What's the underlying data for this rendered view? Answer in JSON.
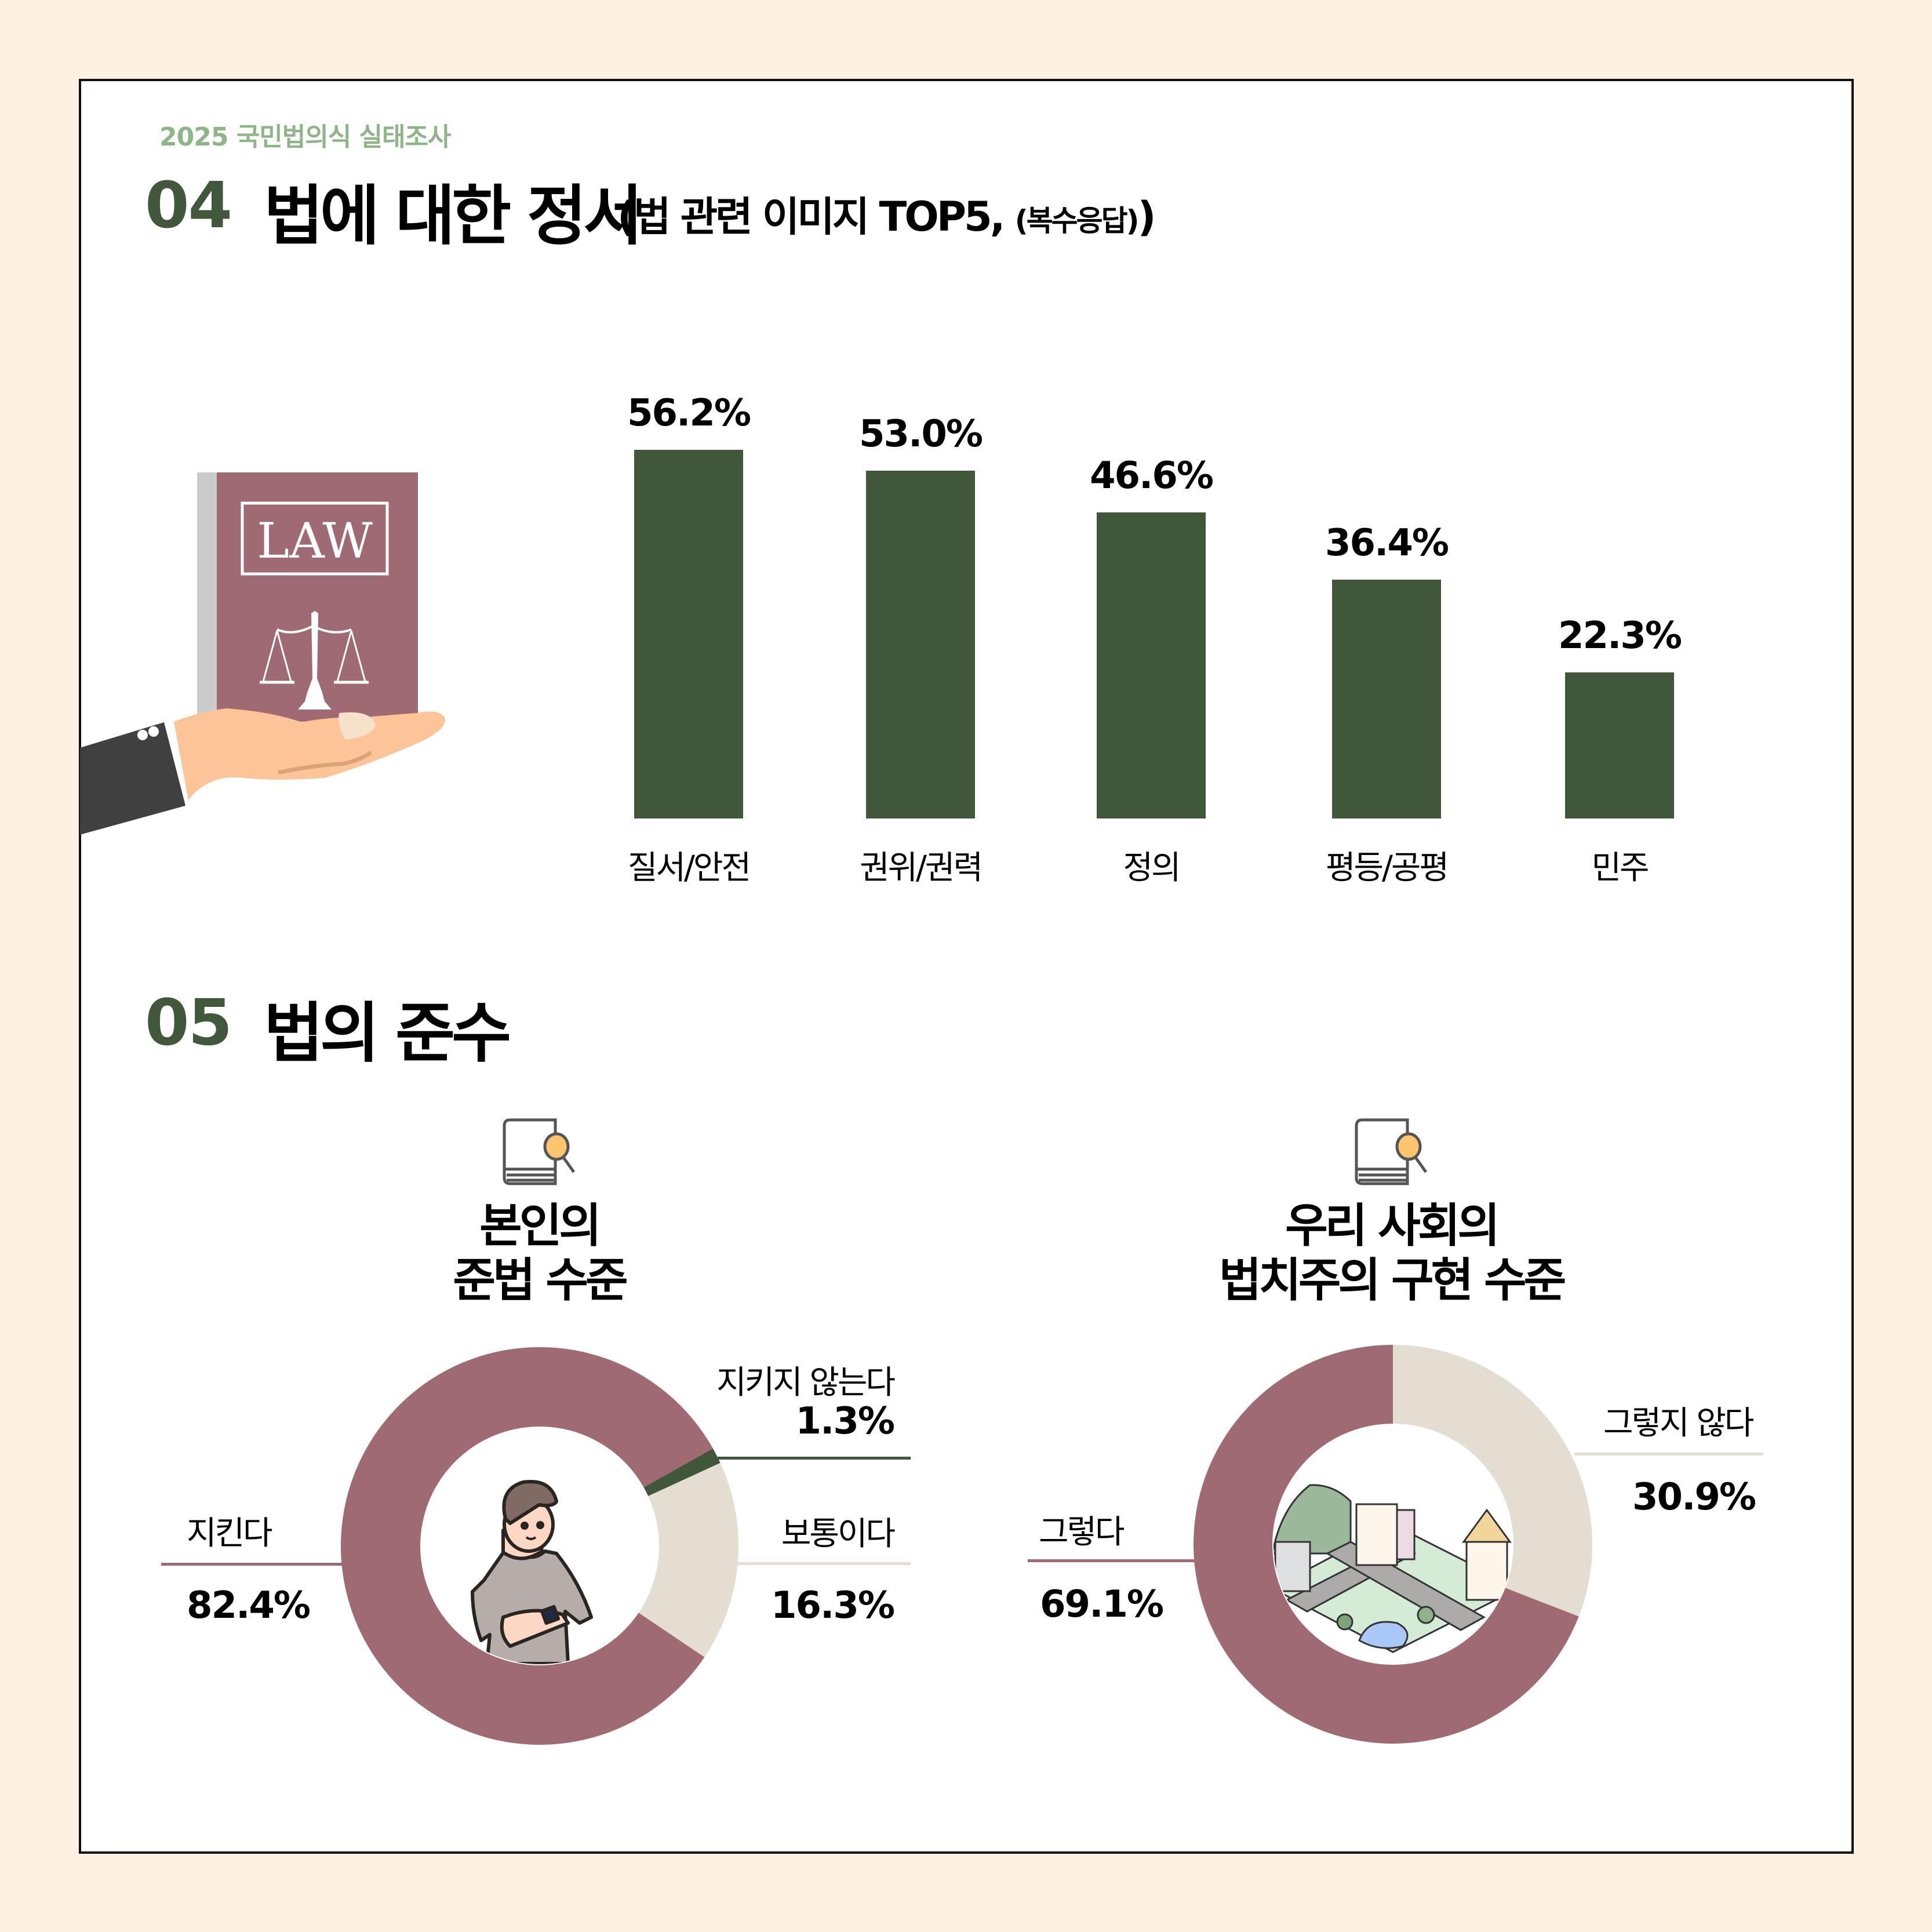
{
  "header": {
    "eyebrow": "2025 국민법의식 실태조사"
  },
  "section04": {
    "number": "04",
    "title": "법에 대한 정서",
    "subtitle_main": "(법 관련 이미지 TOP5,",
    "subtitle_small": "(복수응답)",
    "subtitle_close": ")",
    "illustration": {
      "book_label": "LAW"
    }
  },
  "section05": {
    "number": "05",
    "title": "법의 준수",
    "left": {
      "title_line1": "본인의",
      "title_line2": "준법 수준",
      "icon": "book-search-icon"
    },
    "right": {
      "title_line1": "우리 사회의",
      "title_line2": "법치주의 구현 수준",
      "icon": "book-search-icon"
    }
  },
  "colors": {
    "background": "#fef1e2",
    "bar": "#41573c",
    "accent_green": "#42583c",
    "eyebrow_green": "#8db587",
    "maroon": "#a06a72",
    "beige": "#e3ddd2"
  },
  "chart_data": [
    {
      "type": "bar",
      "title": "법에 대한 정서 (법 관련 이미지 TOP5, (복수응답))",
      "categories": [
        "질서/안전",
        "권위/권력",
        "정의",
        "평등/공평",
        "민주"
      ],
      "values": [
        56.2,
        53.0,
        46.6,
        36.4,
        22.3
      ],
      "value_labels": [
        "56.2%",
        "53.0%",
        "46.6%",
        "36.4%",
        "22.3%"
      ],
      "xlabel": "",
      "ylabel": "",
      "unit": "%",
      "grid": false,
      "legend": false,
      "color": "#41573c"
    },
    {
      "type": "pie",
      "variant": "donut",
      "title": "본인의 준법 수준",
      "slices": [
        {
          "label": "지킨다",
          "value": 82.4,
          "display": "82.4%",
          "color": "#a06a72"
        },
        {
          "label": "지키지 않는다",
          "value": 1.3,
          "display": "1.3%",
          "color": "#41573c"
        },
        {
          "label": "보통이다",
          "value": 16.3,
          "display": "16.3%",
          "color": "#e3ddd2"
        }
      ],
      "start_angle_deg": 124
    },
    {
      "type": "pie",
      "variant": "donut",
      "title": "우리 사회의 법치주의 구현 수준",
      "slices": [
        {
          "label": "그렇지 않다",
          "value": 30.9,
          "display": "30.9%",
          "color": "#e3ddd2"
        },
        {
          "label": "그렇다",
          "value": 69.1,
          "display": "69.1%",
          "color": "#a06a72"
        }
      ],
      "start_angle_deg": 0
    }
  ]
}
